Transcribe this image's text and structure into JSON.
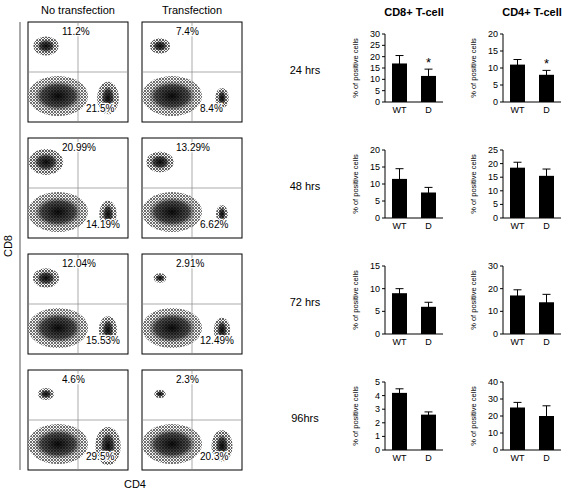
{
  "figure": {
    "flow_titles": [
      "No transfection",
      "Transfection"
    ],
    "flow_xlabel": "CD4",
    "flow_ylabel": "CD8",
    "row_labels": [
      "24 hrs",
      "48 hrs",
      "72 hrs",
      "96hrs"
    ],
    "bar_titles": [
      "CD8+ T-cell",
      "CD4+ T-cell"
    ]
  },
  "chart_data": [
    {
      "type": "flow_cytometry",
      "values": [
        11.2,
        21.5
      ],
      "value_labels": [
        "11.2%",
        "21.5%"
      ],
      "data_labels": true
    },
    {
      "type": "flow_cytometry",
      "values": [
        7.4,
        8.4
      ],
      "value_labels": [
        "7.4%",
        "8.4%"
      ],
      "data_labels": true
    },
    {
      "type": "flow_cytometry",
      "values": [
        20.99,
        14.19
      ],
      "value_labels": [
        "20.99%",
        "14.19%"
      ],
      "data_labels": true
    },
    {
      "type": "flow_cytometry",
      "values": [
        13.29,
        6.62
      ],
      "value_labels": [
        "13.29%",
        "6.62%"
      ],
      "data_labels": true
    },
    {
      "type": "flow_cytometry",
      "values": [
        12.04,
        15.53
      ],
      "value_labels": [
        "12.04%",
        "15.53%"
      ],
      "data_labels": true
    },
    {
      "type": "flow_cytometry",
      "values": [
        2.91,
        12.49
      ],
      "value_labels": [
        "2.91%",
        "12.49%"
      ],
      "data_labels": true
    },
    {
      "type": "flow_cytometry",
      "values": [
        4.6,
        29.5
      ],
      "value_labels": [
        "4.6%",
        "29.5%"
      ],
      "data_labels": true
    },
    {
      "type": "flow_cytometry",
      "values": [
        2.3,
        20.3
      ],
      "value_labels": [
        "2.3%",
        "20.3%"
      ],
      "data_labels": true
    },
    {
      "type": "bar",
      "ylabel": "% of positive cells",
      "categories": [
        "WT",
        "D"
      ],
      "values": [
        17,
        11.5
      ],
      "errors": [
        3.5,
        3
      ],
      "annotations": [
        null,
        "*"
      ],
      "ylim": [
        0,
        30
      ],
      "yticks": [
        0,
        5,
        10,
        15,
        20,
        25,
        30
      ],
      "color": "#000000"
    },
    {
      "type": "bar",
      "ylabel": "% of positive cells",
      "categories": [
        "WT",
        "D"
      ],
      "values": [
        11,
        8
      ],
      "errors": [
        1.5,
        1.3
      ],
      "annotations": [
        null,
        "*"
      ],
      "ylim": [
        0,
        20
      ],
      "yticks": [
        0,
        5,
        10,
        15,
        20
      ],
      "color": "#000000"
    },
    {
      "type": "bar",
      "ylabel": "% of positive cells",
      "categories": [
        "WT",
        "D"
      ],
      "values": [
        11.5,
        7.5
      ],
      "errors": [
        3,
        1.5
      ],
      "ylim": [
        0,
        20
      ],
      "yticks": [
        0,
        5,
        10,
        15,
        20
      ],
      "color": "#000000"
    },
    {
      "type": "bar",
      "ylabel": "% of positive cells",
      "categories": [
        "WT",
        "D"
      ],
      "values": [
        18.5,
        15.5
      ],
      "errors": [
        2,
        2.5
      ],
      "ylim": [
        0,
        25
      ],
      "yticks": [
        0,
        5,
        10,
        15,
        20,
        25
      ],
      "color": "#000000"
    },
    {
      "type": "bar",
      "ylabel": "% of positive cells",
      "categories": [
        "WT",
        "D"
      ],
      "values": [
        9,
        6
      ],
      "errors": [
        1,
        1
      ],
      "ylim": [
        0,
        15
      ],
      "yticks": [
        0,
        5,
        10,
        15
      ],
      "color": "#000000"
    },
    {
      "type": "bar",
      "ylabel": "% of positive cells",
      "categories": [
        "WT",
        "D"
      ],
      "values": [
        17,
        14
      ],
      "errors": [
        2.5,
        3.5
      ],
      "ylim": [
        0,
        30
      ],
      "yticks": [
        0,
        10,
        20,
        30
      ],
      "color": "#000000"
    },
    {
      "type": "bar",
      "ylabel": "% of positive cells",
      "categories": [
        "WT",
        "D"
      ],
      "values": [
        4.2,
        2.6
      ],
      "errors": [
        0.3,
        0.2
      ],
      "ylim": [
        0,
        5
      ],
      "yticks": [
        0,
        1,
        2,
        3,
        4,
        5
      ],
      "color": "#000000"
    },
    {
      "type": "bar",
      "ylabel": "% of positive cells",
      "categories": [
        "WT",
        "D"
      ],
      "values": [
        25,
        20
      ],
      "errors": [
        3,
        6
      ],
      "ylim": [
        0,
        40
      ],
      "yticks": [
        0,
        10,
        20,
        30,
        40
      ],
      "color": "#000000"
    }
  ]
}
